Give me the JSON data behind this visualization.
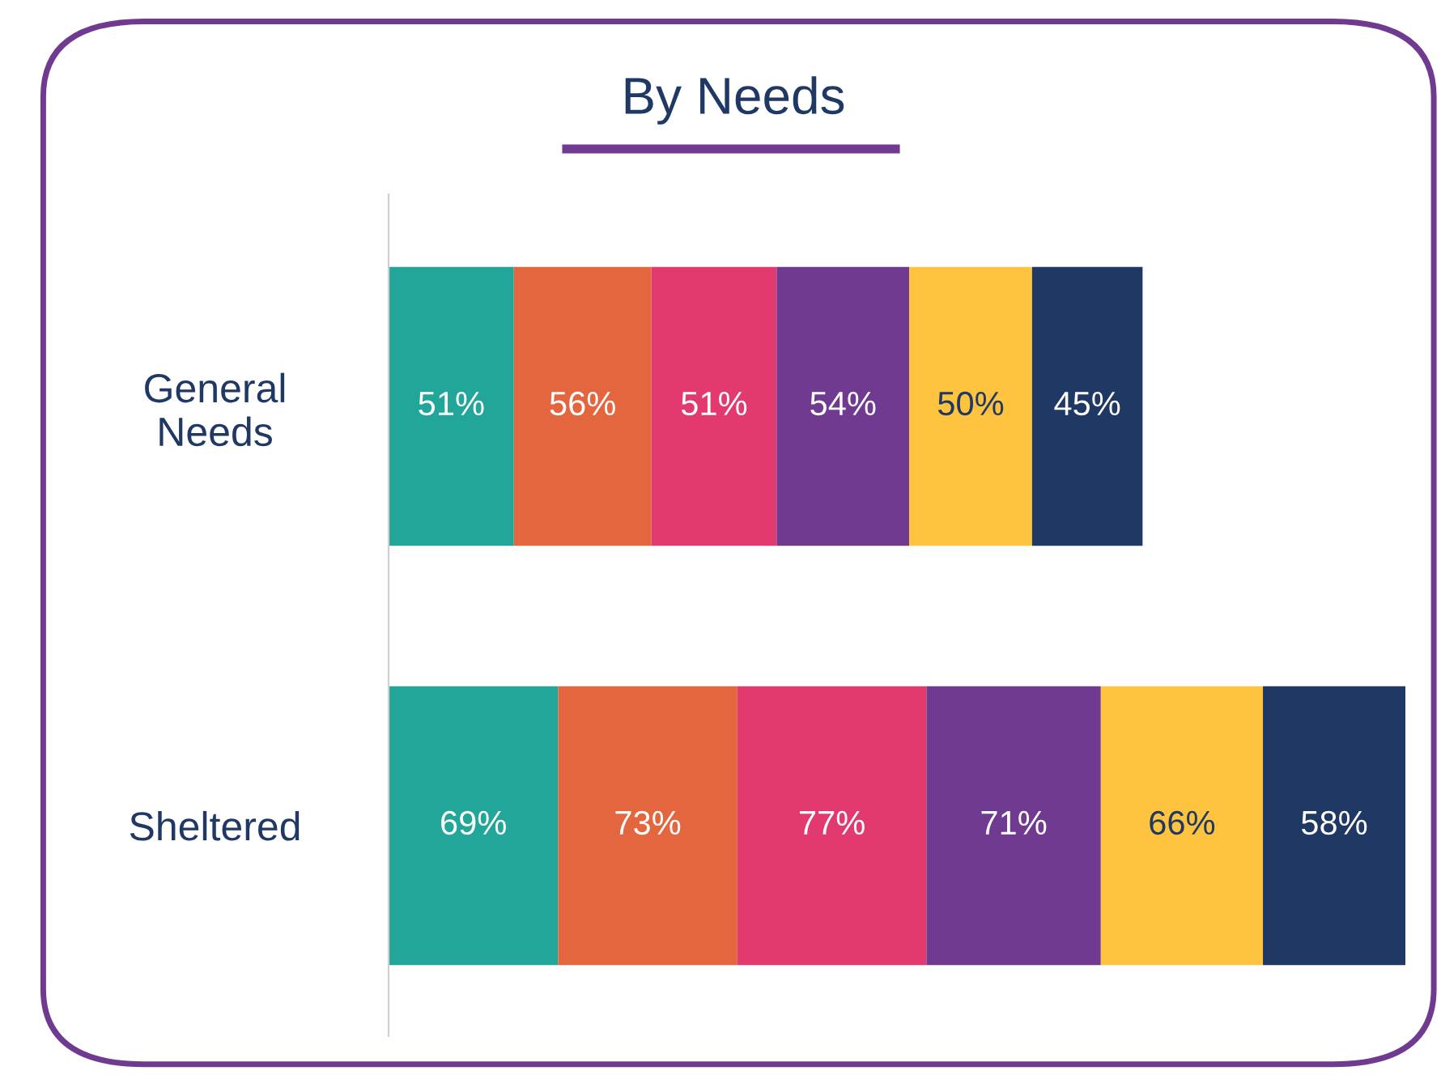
{
  "chart_data": {
    "type": "bar",
    "title": "By Needs",
    "orientation": "horizontal",
    "stacked": true,
    "grid": false,
    "legend": false,
    "tick_labels": "y",
    "categories": [
      "General\nNeeds",
      "Sheltered"
    ],
    "series": [
      {
        "color": "#22a699",
        "values": [
          51,
          69
        ],
        "value_labels": [
          "51%",
          "69%"
        ]
      },
      {
        "color": "#e3663e",
        "values": [
          56,
          73
        ],
        "value_labels": [
          "56%",
          "73%"
        ]
      },
      {
        "color": "#e2396e",
        "values": [
          51,
          77
        ],
        "value_labels": [
          "51%",
          "77%"
        ]
      },
      {
        "color": "#6f3a8f",
        "values": [
          54,
          71
        ],
        "value_labels": [
          "54%",
          "71%"
        ]
      },
      {
        "color": "#fec33f",
        "values": [
          50,
          66
        ],
        "value_labels": [
          "50%",
          "66%"
        ]
      },
      {
        "color": "#203864",
        "values": [
          45,
          58
        ],
        "value_labels": [
          "45%",
          "58%"
        ]
      }
    ]
  }
}
